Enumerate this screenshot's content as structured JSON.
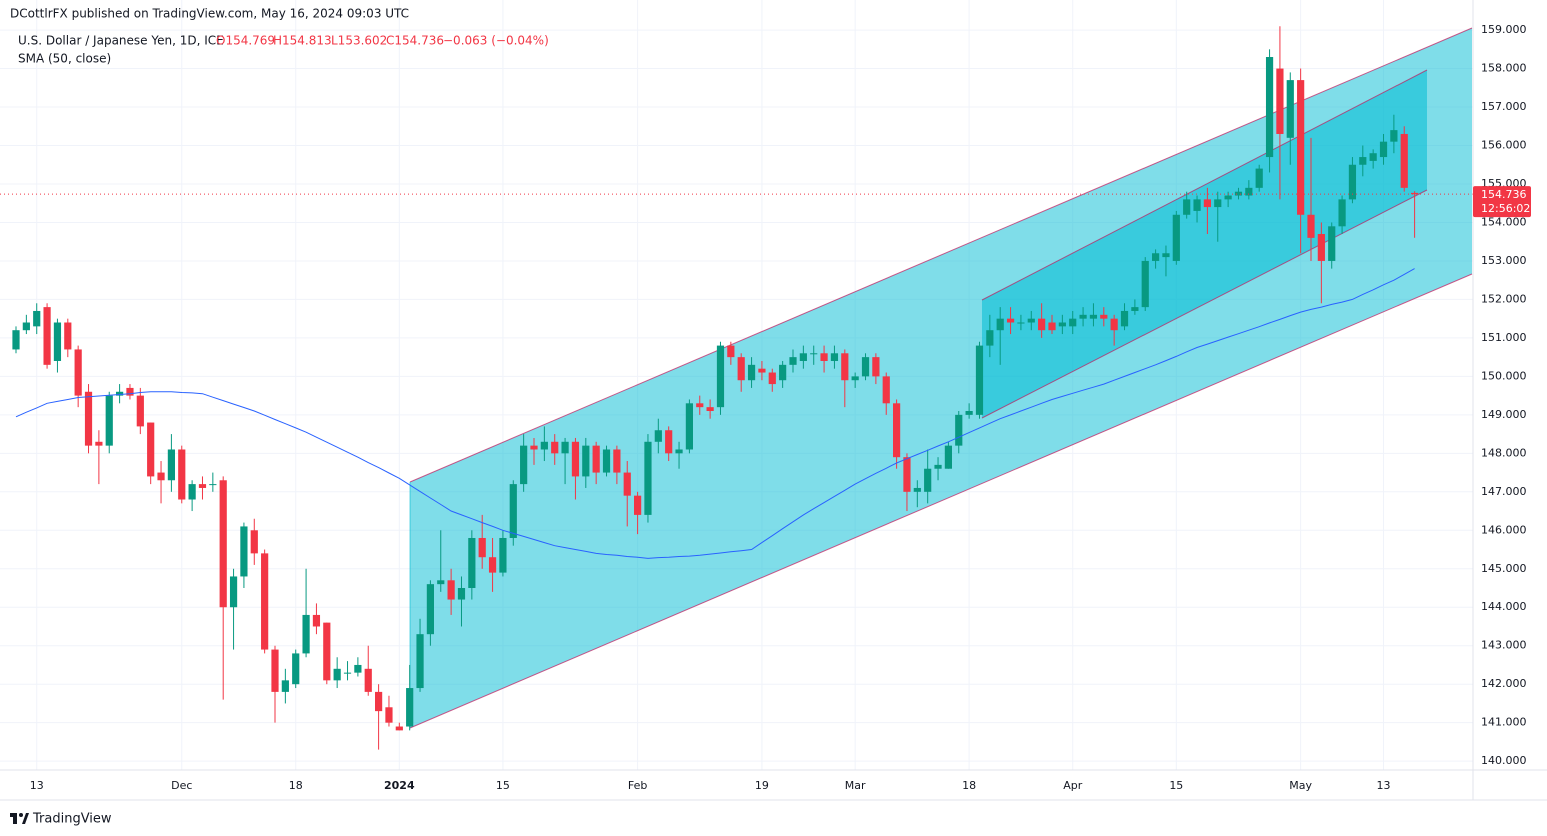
{
  "chart_data": {
    "type": "candlestick",
    "title": "DCottlrFX published on TradingView.com, May 16, 2024 09:03 UTC",
    "series_name": "U.S. Dollar / Japanese Yen, 1D, ICE",
    "ohlc_labels": [
      "O154.769",
      "H154.813",
      "L153.602",
      "C154.736"
    ],
    "change_label": "−0.063 (−0.04%)",
    "brand": "TradingView",
    "up_color": "#089981",
    "down_color": "#f23645",
    "categories": [
      null,
      null,
      "13",
      null,
      null,
      null,
      null,
      null,
      null,
      null,
      null,
      null,
      null,
      null,
      null,
      null,
      "Dec",
      null,
      null,
      null,
      null,
      null,
      null,
      null,
      null,
      null,
      null,
      "18",
      null,
      null,
      null,
      null,
      null,
      null,
      null,
      null,
      null,
      "2024",
      null,
      null,
      null,
      null,
      null,
      null,
      null,
      null,
      null,
      "15",
      null,
      null,
      null,
      null,
      null,
      null,
      null,
      null,
      null,
      null,
      null,
      null,
      "Feb",
      null,
      null,
      null,
      null,
      null,
      null,
      null,
      null,
      null,
      null,
      null,
      "19",
      null,
      null,
      null,
      null,
      null,
      null,
      null,
      null,
      "Mar",
      null,
      null,
      null,
      null,
      null,
      null,
      null,
      null,
      null,
      null,
      "18",
      null,
      null,
      null,
      null,
      null,
      null,
      null,
      null,
      null,
      "Apr",
      null,
      null,
      null,
      null,
      null,
      null,
      null,
      null,
      null,
      "15",
      null,
      null,
      null,
      null,
      null,
      null,
      null,
      null,
      null,
      null,
      null,
      "May",
      null,
      null,
      null,
      null,
      null,
      null,
      null,
      "13",
      null,
      null,
      null
    ],
    "open": [
      150.7,
      151.2,
      151.3,
      151.8,
      150.4,
      151.4,
      150.7,
      149.6,
      148.3,
      148.2,
      149.5,
      149.7,
      149.5,
      148.8,
      147.5,
      147.3,
      148.1,
      146.8,
      147.2,
      147.2,
      147.3,
      144.0,
      144.8,
      146.0,
      145.4,
      142.9,
      141.8,
      142.0,
      142.8,
      143.8,
      143.6,
      142.1,
      142.3,
      142.3,
      142.4,
      141.8,
      141.4,
      140.9,
      140.9,
      141.9,
      143.3,
      144.6,
      144.7,
      144.2,
      144.5,
      145.8,
      145.3,
      144.9,
      145.8,
      147.2,
      148.2,
      148.1,
      148.3,
      148.0,
      148.3,
      147.4,
      148.2,
      147.5,
      148.1,
      147.5,
      146.9,
      146.4,
      148.3,
      148.6,
      148.0,
      148.1,
      149.3,
      149.2,
      149.2,
      150.8,
      150.5,
      149.9,
      150.2,
      150.1,
      149.9,
      150.3,
      150.4,
      150.6,
      150.6,
      150.4,
      150.6,
      149.9,
      150.0,
      150.5,
      150.0,
      149.3,
      147.9,
      147.0,
      147.0,
      147.6,
      147.6,
      148.2,
      149.0,
      149.0,
      150.8,
      151.2,
      151.5,
      151.4,
      151.4,
      151.5,
      151.4,
      151.3,
      151.3,
      151.5,
      151.5,
      151.6,
      151.5,
      151.3,
      151.7,
      151.8,
      153.0,
      153.1,
      153.0,
      154.2,
      154.3,
      154.6,
      154.4,
      154.6,
      154.7,
      154.7,
      154.9,
      155.7,
      158.0,
      156.2,
      157.7,
      154.2,
      153.7,
      153.0,
      153.9,
      154.6,
      155.5,
      155.6,
      155.7,
      156.1,
      156.3,
      154.769
    ],
    "high": [
      151.3,
      151.6,
      151.9,
      151.9,
      151.5,
      151.5,
      150.8,
      149.8,
      148.6,
      149.6,
      149.8,
      149.8,
      149.7,
      148.8,
      147.8,
      148.5,
      148.2,
      147.3,
      147.4,
      147.5,
      147.4,
      145.0,
      146.2,
      146.3,
      145.5,
      143.0,
      142.4,
      142.9,
      145.0,
      144.1,
      143.6,
      142.7,
      142.6,
      142.7,
      143.0,
      142.0,
      141.7,
      141.0,
      142.5,
      143.7,
      144.7,
      146.0,
      145.0,
      144.8,
      146.0,
      146.4,
      145.8,
      146.0,
      147.3,
      148.5,
      148.4,
      148.7,
      148.5,
      148.4,
      148.4,
      148.4,
      148.3,
      148.2,
      148.2,
      147.8,
      147.0,
      148.5,
      148.9,
      148.7,
      148.3,
      149.4,
      149.5,
      149.4,
      150.9,
      150.9,
      150.6,
      150.5,
      150.4,
      150.2,
      150.4,
      150.7,
      150.8,
      150.8,
      150.8,
      150.8,
      150.7,
      150.1,
      150.6,
      150.6,
      150.1,
      149.4,
      148.0,
      147.3,
      148.1,
      147.9,
      148.3,
      149.1,
      149.3,
      150.9,
      151.6,
      151.8,
      151.8,
      151.6,
      151.7,
      151.9,
      151.6,
      151.6,
      151.7,
      151.8,
      151.9,
      151.8,
      151.6,
      151.9,
      152.0,
      153.1,
      153.3,
      153.4,
      154.3,
      154.8,
      154.7,
      154.9,
      154.8,
      154.8,
      154.9,
      155.1,
      155.5,
      158.5,
      159.1,
      157.9,
      158.0,
      156.2,
      154.0,
      154.0,
      154.7,
      155.7,
      156.0,
      155.9,
      156.3,
      156.8,
      156.5,
      154.813
    ],
    "low": [
      150.6,
      151.1,
      151.1,
      150.2,
      150.1,
      150.5,
      149.2,
      148.0,
      147.2,
      148.0,
      149.3,
      149.4,
      148.5,
      147.2,
      146.7,
      147.0,
      146.7,
      146.5,
      146.8,
      147.0,
      141.6,
      142.9,
      144.5,
      145.1,
      142.8,
      141.0,
      141.5,
      141.9,
      142.7,
      143.3,
      142.0,
      141.9,
      142.1,
      142.2,
      141.7,
      140.3,
      140.9,
      140.8,
      140.8,
      141.8,
      143.0,
      144.4,
      143.8,
      143.5,
      144.2,
      145.0,
      144.4,
      144.8,
      145.6,
      147.0,
      147.7,
      147.8,
      147.7,
      147.2,
      146.8,
      147.1,
      147.2,
      147.4,
      147.2,
      146.1,
      145.9,
      146.2,
      148.0,
      147.8,
      147.6,
      148.0,
      149.0,
      148.9,
      149.0,
      150.3,
      149.6,
      149.7,
      149.9,
      149.6,
      149.7,
      150.1,
      150.2,
      150.3,
      150.1,
      150.2,
      149.2,
      149.7,
      149.9,
      149.8,
      149.0,
      147.6,
      146.5,
      146.6,
      146.7,
      147.3,
      147.6,
      148.0,
      148.9,
      148.9,
      150.5,
      150.3,
      151.1,
      151.2,
      151.2,
      151.0,
      151.1,
      151.1,
      151.1,
      151.3,
      151.3,
      151.3,
      150.8,
      151.2,
      151.6,
      151.7,
      152.8,
      152.6,
      152.9,
      154.1,
      154.0,
      153.7,
      153.5,
      154.4,
      154.6,
      154.6,
      154.8,
      155.3,
      154.6,
      155.5,
      153.2,
      153.0,
      151.9,
      152.8,
      153.7,
      154.5,
      155.2,
      155.4,
      155.5,
      155.8,
      154.8,
      153.602
    ],
    "close": [
      151.2,
      151.4,
      151.7,
      150.3,
      151.4,
      150.7,
      149.5,
      148.2,
      148.2,
      149.5,
      149.6,
      149.5,
      148.7,
      147.4,
      147.3,
      148.1,
      146.8,
      147.2,
      147.1,
      147.2,
      144.0,
      144.8,
      146.1,
      145.4,
      142.9,
      141.8,
      142.1,
      142.8,
      143.8,
      143.5,
      142.1,
      142.4,
      142.3,
      142.5,
      141.8,
      141.3,
      141.0,
      140.8,
      141.9,
      143.3,
      144.6,
      144.7,
      144.2,
      144.5,
      145.8,
      145.3,
      144.9,
      145.8,
      147.2,
      148.2,
      148.1,
      148.3,
      148.0,
      148.3,
      147.4,
      148.2,
      147.5,
      148.1,
      147.5,
      146.9,
      146.4,
      148.3,
      148.6,
      148.0,
      148.1,
      149.3,
      149.2,
      149.1,
      150.8,
      150.5,
      149.9,
      150.3,
      150.1,
      149.8,
      150.3,
      150.5,
      150.6,
      150.6,
      150.4,
      150.6,
      149.9,
      150.0,
      150.5,
      150.0,
      149.3,
      147.9,
      147.0,
      147.1,
      147.6,
      147.7,
      148.2,
      149.0,
      149.1,
      150.8,
      151.2,
      151.5,
      151.4,
      151.4,
      151.5,
      151.2,
      151.2,
      151.4,
      151.5,
      151.6,
      151.6,
      151.5,
      151.2,
      151.7,
      151.8,
      153.0,
      153.2,
      153.2,
      154.2,
      154.6,
      154.6,
      154.4,
      154.6,
      154.7,
      154.8,
      154.9,
      155.4,
      158.3,
      156.3,
      157.7,
      154.2,
      153.6,
      153.0,
      153.9,
      154.6,
      155.5,
      155.7,
      155.8,
      156.1,
      156.4,
      154.9,
      154.736
    ],
    "overlays": [
      {
        "name": "SMA (50, close)",
        "color": "#2962ff",
        "values": [
          148.95,
          149.07,
          149.18,
          149.3,
          149.35,
          149.4,
          149.45,
          149.47,
          149.49,
          149.51,
          149.53,
          149.55,
          149.58,
          149.6,
          149.6,
          149.6,
          149.58,
          149.57,
          149.55,
          149.46,
          149.37,
          149.28,
          149.19,
          149.1,
          148.99,
          148.88,
          148.77,
          148.66,
          148.55,
          148.42,
          148.29,
          148.16,
          148.03,
          147.9,
          147.76,
          147.63,
          147.49,
          147.35,
          147.18,
          147.01,
          146.84,
          146.67,
          146.5,
          146.4,
          146.3,
          146.2,
          146.1,
          146.0,
          145.92,
          145.84,
          145.76,
          145.68,
          145.6,
          145.55,
          145.5,
          145.45,
          145.4,
          145.37,
          145.35,
          145.32,
          145.3,
          145.27,
          145.29,
          145.3,
          145.32,
          145.33,
          145.35,
          145.38,
          145.41,
          145.44,
          145.47,
          145.5,
          145.68,
          145.86,
          146.04,
          146.22,
          146.4,
          146.56,
          146.72,
          146.88,
          147.04,
          147.2,
          147.34,
          147.48,
          147.61,
          147.75,
          147.86,
          147.97,
          148.08,
          148.19,
          148.3,
          148.42,
          148.54,
          148.66,
          148.78,
          148.9,
          149.0,
          149.1,
          149.2,
          149.3,
          149.4,
          149.48,
          149.56,
          149.64,
          149.72,
          149.8,
          149.9,
          150.0,
          150.1,
          150.2,
          150.3,
          150.41,
          150.52,
          150.64,
          150.75,
          150.84,
          150.93,
          151.02,
          151.11,
          151.2,
          151.29,
          151.39,
          151.48,
          151.58,
          151.67,
          151.74,
          151.8,
          151.87,
          151.93,
          152.0,
          152.13,
          152.25,
          152.38,
          152.5,
          152.65,
          152.8
        ]
      }
    ],
    "last_price": 154.736,
    "countdown": "12:56:02",
    "ylim": [
      139.77,
      159.21
    ],
    "yticks": [
      {
        "value": 140,
        "label": "140.000"
      },
      {
        "value": 141,
        "label": "141.000"
      },
      {
        "value": 142,
        "label": "142.000"
      },
      {
        "value": 143,
        "label": "143.000"
      },
      {
        "value": 144,
        "label": "144.000"
      },
      {
        "value": 145,
        "label": "145.000"
      },
      {
        "value": 146,
        "label": "146.000"
      },
      {
        "value": 147,
        "label": "147.000"
      },
      {
        "value": 148,
        "label": "148.000"
      },
      {
        "value": 149,
        "label": "149.000"
      },
      {
        "value": 150,
        "label": "150.000"
      },
      {
        "value": 151,
        "label": "151.000"
      },
      {
        "value": 152,
        "label": "152.000"
      },
      {
        "value": 153,
        "label": "153.000"
      },
      {
        "value": 154,
        "label": "154.000"
      },
      {
        "value": 155,
        "label": "155.000"
      },
      {
        "value": 156,
        "label": "156.000"
      },
      {
        "value": 157,
        "label": "157.000"
      },
      {
        "value": 158,
        "label": "158.000"
      },
      {
        "value": 159,
        "label": "159.000"
      }
    ],
    "grid": true
  }
}
